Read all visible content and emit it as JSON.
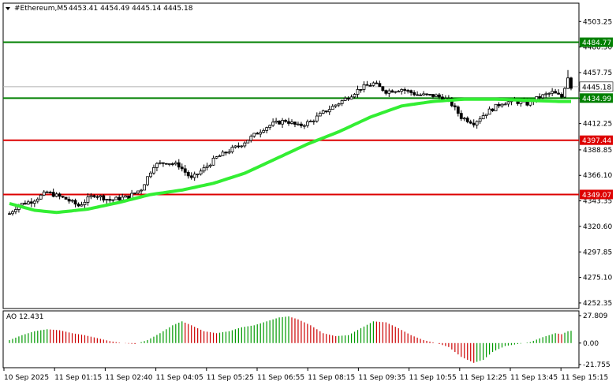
{
  "header": {
    "symbol": "#Ethereum,M5",
    "ohlc": "4453.41 4454.49 4445.14 4445.18",
    "collapse_icon": "triangle-down-icon"
  },
  "colors": {
    "background": "#ffffff",
    "candle": "#000000",
    "ma_line": "#33ee33",
    "support_line": "#008000",
    "resistance_line": "#dd0000",
    "current_price_line": "#b0b0b0",
    "ao_up": "#009900",
    "ao_down": "#cc0000",
    "border": "#000000"
  },
  "chart_data": {
    "type": "candlestick",
    "price_axis": {
      "ticks": [
        "4503.25",
        "4480.50",
        "4457.75",
        "4435.00",
        "4412.25",
        "4388.85",
        "4366.10",
        "4343.35",
        "4320.60",
        "4297.85",
        "4275.10",
        "4252.35"
      ],
      "ylim": [
        4250.2,
        4514.0
      ]
    },
    "time_axis": {
      "labels": [
        "10 Sep 2025",
        "11 Sep 01:15",
        "11 Sep 02:40",
        "11 Sep 04:05",
        "11 Sep 05:25",
        "11 Sep 06:55",
        "11 Sep 08:15",
        "11 Sep 09:35",
        "11 Sep 10:55",
        "11 Sep 12:25",
        "11 Sep 13:45",
        "11 Sep 15:15"
      ]
    },
    "levels": [
      {
        "label": "4484.77",
        "value": 4484.77,
        "kind": "green"
      },
      {
        "label": "4434.99",
        "value": 4434.99,
        "kind": "green"
      },
      {
        "label": "4397.44",
        "value": 4397.44,
        "kind": "red"
      },
      {
        "label": "4349.07",
        "value": 4349.07,
        "kind": "red"
      }
    ],
    "current_price": {
      "label": "4445.18",
      "value": 4445.18
    },
    "price_anchors": [
      [
        0,
        4332
      ],
      [
        3,
        4340
      ],
      [
        7,
        4343
      ],
      [
        12,
        4351
      ],
      [
        18,
        4345
      ],
      [
        22,
        4339
      ],
      [
        27,
        4349
      ],
      [
        32,
        4344
      ],
      [
        38,
        4347
      ],
      [
        42,
        4354
      ],
      [
        46,
        4375
      ],
      [
        50,
        4378
      ],
      [
        54,
        4375
      ],
      [
        58,
        4363
      ],
      [
        62,
        4372
      ],
      [
        66,
        4382
      ],
      [
        70,
        4388
      ],
      [
        74,
        4394
      ],
      [
        78,
        4402
      ],
      [
        81,
        4408
      ],
      [
        84,
        4412
      ],
      [
        88,
        4415
      ],
      [
        92,
        4410
      ],
      [
        96,
        4414
      ],
      [
        100,
        4422
      ],
      [
        104,
        4429
      ],
      [
        108,
        4436
      ],
      [
        112,
        4444
      ],
      [
        116,
        4448
      ],
      [
        120,
        4441
      ],
      [
        125,
        4443
      ],
      [
        130,
        4438
      ],
      [
        136,
        4437
      ],
      [
        140,
        4433
      ],
      [
        144,
        4418
      ],
      [
        148,
        4413
      ],
      [
        152,
        4422
      ],
      [
        157,
        4431
      ],
      [
        161,
        4432
      ],
      [
        165,
        4430
      ],
      [
        169,
        4436
      ],
      [
        173,
        4440
      ],
      [
        176,
        4436
      ],
      [
        178,
        4454
      ],
      [
        179,
        4445
      ]
    ],
    "ma_points": [
      [
        0,
        4341
      ],
      [
        8,
        4335
      ],
      [
        15,
        4333
      ],
      [
        25,
        4336
      ],
      [
        35,
        4342
      ],
      [
        45,
        4349
      ],
      [
        55,
        4353
      ],
      [
        65,
        4359
      ],
      [
        75,
        4368
      ],
      [
        85,
        4381
      ],
      [
        95,
        4394
      ],
      [
        105,
        4405
      ],
      [
        115,
        4418
      ],
      [
        125,
        4428
      ],
      [
        135,
        4432
      ],
      [
        145,
        4434
      ],
      [
        155,
        4434
      ],
      [
        165,
        4433
      ],
      [
        175,
        4432
      ],
      [
        179,
        4432
      ]
    ],
    "ao": {
      "label": "AO 12.431",
      "ticks": [
        "27.809",
        "0.00",
        "-21.755"
      ],
      "range": [
        -21.755,
        27.809
      ],
      "anchors": [
        [
          0,
          3
        ],
        [
          4,
          8
        ],
        [
          8,
          12
        ],
        [
          12,
          14
        ],
        [
          16,
          13
        ],
        [
          20,
          10
        ],
        [
          24,
          8
        ],
        [
          28,
          5
        ],
        [
          32,
          2
        ],
        [
          36,
          0
        ],
        [
          40,
          -1
        ],
        [
          44,
          3
        ],
        [
          48,
          10
        ],
        [
          52,
          18
        ],
        [
          55,
          22
        ],
        [
          58,
          18
        ],
        [
          62,
          12
        ],
        [
          66,
          10
        ],
        [
          70,
          12
        ],
        [
          74,
          16
        ],
        [
          78,
          18
        ],
        [
          82,
          22
        ],
        [
          86,
          26
        ],
        [
          89,
          27
        ],
        [
          92,
          24
        ],
        [
          96,
          18
        ],
        [
          100,
          10
        ],
        [
          104,
          7
        ],
        [
          108,
          8
        ],
        [
          112,
          15
        ],
        [
          116,
          22
        ],
        [
          120,
          21
        ],
        [
          124,
          15
        ],
        [
          128,
          8
        ],
        [
          132,
          3
        ],
        [
          136,
          0
        ],
        [
          140,
          -4
        ],
        [
          144,
          -14
        ],
        [
          148,
          -20
        ],
        [
          151,
          -17
        ],
        [
          154,
          -9
        ],
        [
          158,
          -3
        ],
        [
          162,
          -1
        ],
        [
          166,
          1
        ],
        [
          170,
          6
        ],
        [
          174,
          10
        ],
        [
          176,
          9
        ],
        [
          178,
          12
        ],
        [
          179,
          12.431
        ]
      ]
    }
  }
}
